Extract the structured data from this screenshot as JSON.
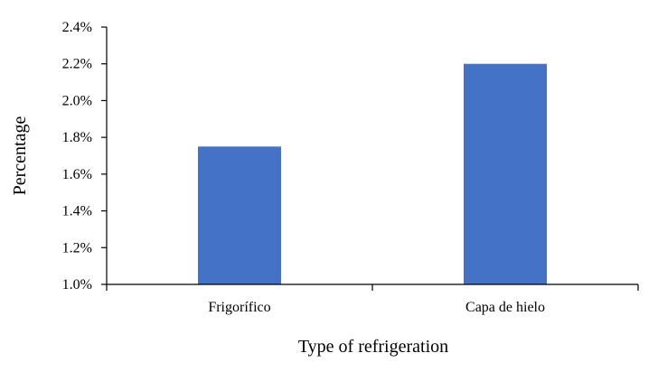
{
  "chart_data": {
    "type": "bar",
    "categories": [
      "Frigorífico",
      "Capa de hielo"
    ],
    "series": [
      {
        "values": [
          1.75,
          2.2
        ],
        "color": "#4472C4"
      }
    ],
    "xlabel": "Type of refrigeration",
    "ylabel": "Percentage",
    "ylim": [
      1.0,
      2.4
    ],
    "yticks": [
      "1.0%",
      "1.2%",
      "1.4%",
      "1.6%",
      "1.8%",
      "2.0%",
      "2.2%",
      "2.4%"
    ],
    "grid": false,
    "legend": "none"
  }
}
